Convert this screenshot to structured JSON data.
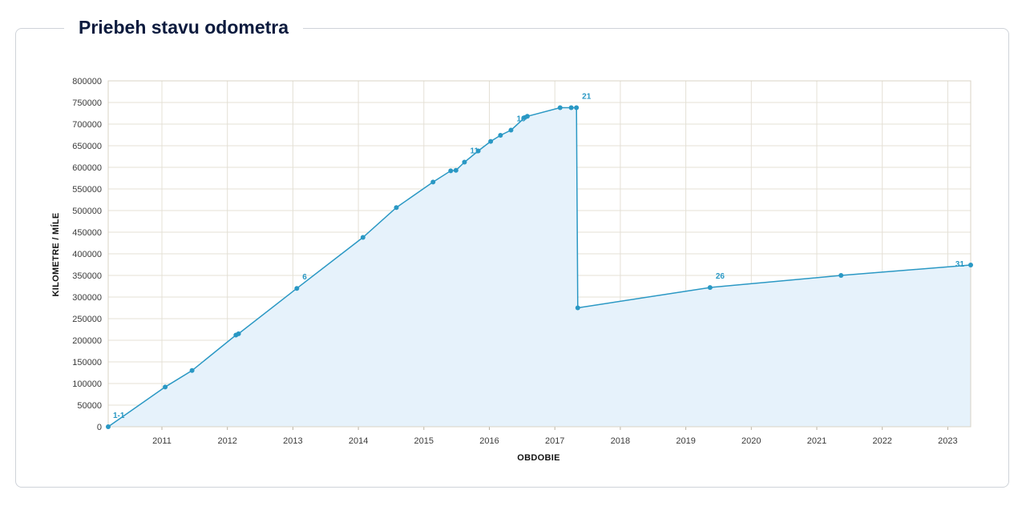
{
  "title": "Priebeh stavu odometra",
  "chart_data": {
    "type": "area",
    "xlabel": "OBDOBIE",
    "ylabel": "KILOMETRE / MÍLE",
    "ylim": [
      0,
      800000
    ],
    "yticks": [
      0,
      50000,
      100000,
      150000,
      200000,
      250000,
      300000,
      350000,
      400000,
      450000,
      500000,
      550000,
      600000,
      650000,
      700000,
      750000,
      800000
    ],
    "xlim": [
      2010.18,
      2023.35
    ],
    "xticks": [
      2011,
      2012,
      2013,
      2014,
      2015,
      2016,
      2017,
      2018,
      2019,
      2020,
      2021,
      2022,
      2023
    ],
    "grid": true,
    "colors": {
      "line": "#2a98c4",
      "fill": "#e6f2fb",
      "grid": "#e4e0d6"
    },
    "points": [
      {
        "x": 2010.18,
        "y": 0,
        "label": "1-1"
      },
      {
        "x": 2011.05,
        "y": 92000
      },
      {
        "x": 2011.46,
        "y": 130000
      },
      {
        "x": 2012.13,
        "y": 212000
      },
      {
        "x": 2012.17,
        "y": 215000
      },
      {
        "x": 2013.06,
        "y": 320000,
        "label": "6"
      },
      {
        "x": 2014.07,
        "y": 438000
      },
      {
        "x": 2014.58,
        "y": 507000
      },
      {
        "x": 2015.14,
        "y": 566000
      },
      {
        "x": 2015.41,
        "y": 592000
      },
      {
        "x": 2015.49,
        "y": 593000
      },
      {
        "x": 2015.62,
        "y": 612000,
        "label": "11"
      },
      {
        "x": 2015.83,
        "y": 638000
      },
      {
        "x": 2016.02,
        "y": 660000
      },
      {
        "x": 2016.17,
        "y": 674000
      },
      {
        "x": 2016.33,
        "y": 686000,
        "label": "16"
      },
      {
        "x": 2016.54,
        "y": 715000
      },
      {
        "x": 2016.58,
        "y": 718000
      },
      {
        "x": 2017.08,
        "y": 738000
      },
      {
        "x": 2017.25,
        "y": 738000
      },
      {
        "x": 2017.33,
        "y": 738000,
        "label": "21"
      },
      {
        "x": 2017.35,
        "y": 275000
      },
      {
        "x": 2019.37,
        "y": 322000,
        "label": "26"
      },
      {
        "x": 2021.37,
        "y": 350000
      },
      {
        "x": 2023.35,
        "y": 374000,
        "label": "31"
      }
    ]
  }
}
